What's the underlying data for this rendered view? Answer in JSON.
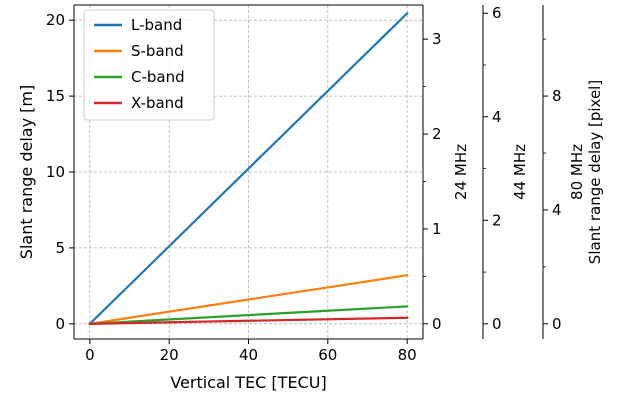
{
  "chart_data": {
    "type": "line",
    "x": [
      0,
      80
    ],
    "xlabel": "Vertical TEC [TECU]",
    "ylabel": "Slant range delay [m]",
    "xlim": [
      -4,
      84
    ],
    "ylim": [
      -1,
      21
    ],
    "xticks": [
      0,
      20,
      40,
      60,
      80
    ],
    "yticks": [
      0,
      5,
      10,
      15,
      20
    ],
    "grid": true,
    "legend_position": "upper-left",
    "series": [
      {
        "name": "L-band",
        "color": "#1f77b4",
        "values": [
          0,
          20.45
        ]
      },
      {
        "name": "S-band",
        "color": "#ff7f0e",
        "values": [
          0,
          3.2
        ]
      },
      {
        "name": "C-band",
        "color": "#2ca02c",
        "values": [
          0,
          1.15
        ]
      },
      {
        "name": "X-band",
        "color": "#d62728",
        "values": [
          0,
          0.4
        ]
      }
    ],
    "secondary_axes": [
      {
        "label": "24 MHz",
        "major_ticks": [
          0,
          1,
          2,
          3
        ],
        "minor_ticks": [
          0.5,
          1.5,
          2.5
        ],
        "scale_pixels_per_m": 0.16
      },
      {
        "label": "44 MHz",
        "major_ticks": [
          0,
          2,
          4,
          6
        ],
        "minor_ticks": [
          1,
          3,
          5
        ],
        "scale_pixels_per_m": 0.2933
      },
      {
        "label": "80 MHz\nSlant range delay [pixel]",
        "major_ticks": [
          0,
          4,
          8
        ],
        "minor_ticks": [
          2,
          6,
          10
        ],
        "scale_pixels_per_m": 0.5333
      }
    ]
  }
}
